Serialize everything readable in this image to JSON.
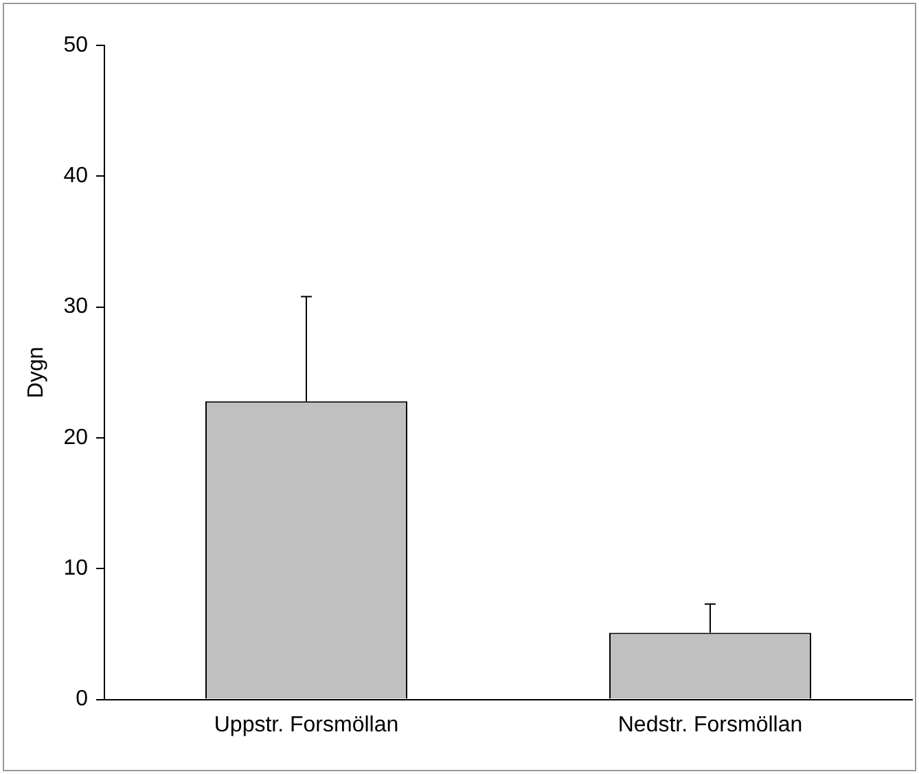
{
  "chart_data": {
    "type": "bar",
    "ylabel": "Dygn",
    "categories": [
      "Uppstr. Forsmöllan",
      "Nedstr. Forsmöllan"
    ],
    "values": [
      22.8,
      5.1
    ],
    "errors": [
      [
        22.8,
        30.8
      ],
      [
        5.1,
        7.3
      ]
    ],
    "color": "#c0c0c0",
    "ylim": [
      0,
      50
    ],
    "yticks": [
      0,
      10,
      20,
      30,
      40,
      50
    ],
    "grid": false,
    "legend": false
  }
}
